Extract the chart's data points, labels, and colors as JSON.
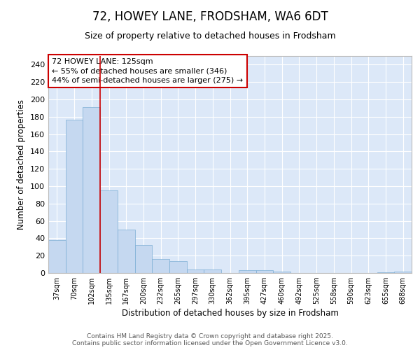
{
  "title_line1": "72, HOWEY LANE, FRODSHAM, WA6 6DT",
  "title_line2": "Size of property relative to detached houses in Frodsham",
  "xlabel": "Distribution of detached houses by size in Frodsham",
  "ylabel": "Number of detached properties",
  "categories": [
    "37sqm",
    "70sqm",
    "102sqm",
    "135sqm",
    "167sqm",
    "200sqm",
    "232sqm",
    "265sqm",
    "297sqm",
    "330sqm",
    "362sqm",
    "395sqm",
    "427sqm",
    "460sqm",
    "492sqm",
    "525sqm",
    "558sqm",
    "590sqm",
    "623sqm",
    "655sqm",
    "688sqm"
  ],
  "values": [
    38,
    177,
    191,
    95,
    50,
    32,
    16,
    14,
    4,
    4,
    0,
    3,
    3,
    2,
    0,
    0,
    0,
    0,
    0,
    1,
    2
  ],
  "bar_color": "#c5d8f0",
  "bar_edge_color": "#7aadd4",
  "red_line_x": 2.5,
  "annotation_text": "72 HOWEY LANE: 125sqm\n← 55% of detached houses are smaller (346)\n44% of semi-detached houses are larger (275) →",
  "annotation_box_color": "#ffffff",
  "annotation_box_edge": "#cc0000",
  "red_line_color": "#cc0000",
  "background_color": "#ffffff",
  "plot_bg_color": "#dce8f8",
  "grid_color": "#ffffff",
  "ylim": [
    0,
    250
  ],
  "yticks": [
    0,
    20,
    40,
    60,
    80,
    100,
    120,
    140,
    160,
    180,
    200,
    220,
    240
  ],
  "footer_line1": "Contains HM Land Registry data © Crown copyright and database right 2025.",
  "footer_line2": "Contains public sector information licensed under the Open Government Licence v3.0."
}
